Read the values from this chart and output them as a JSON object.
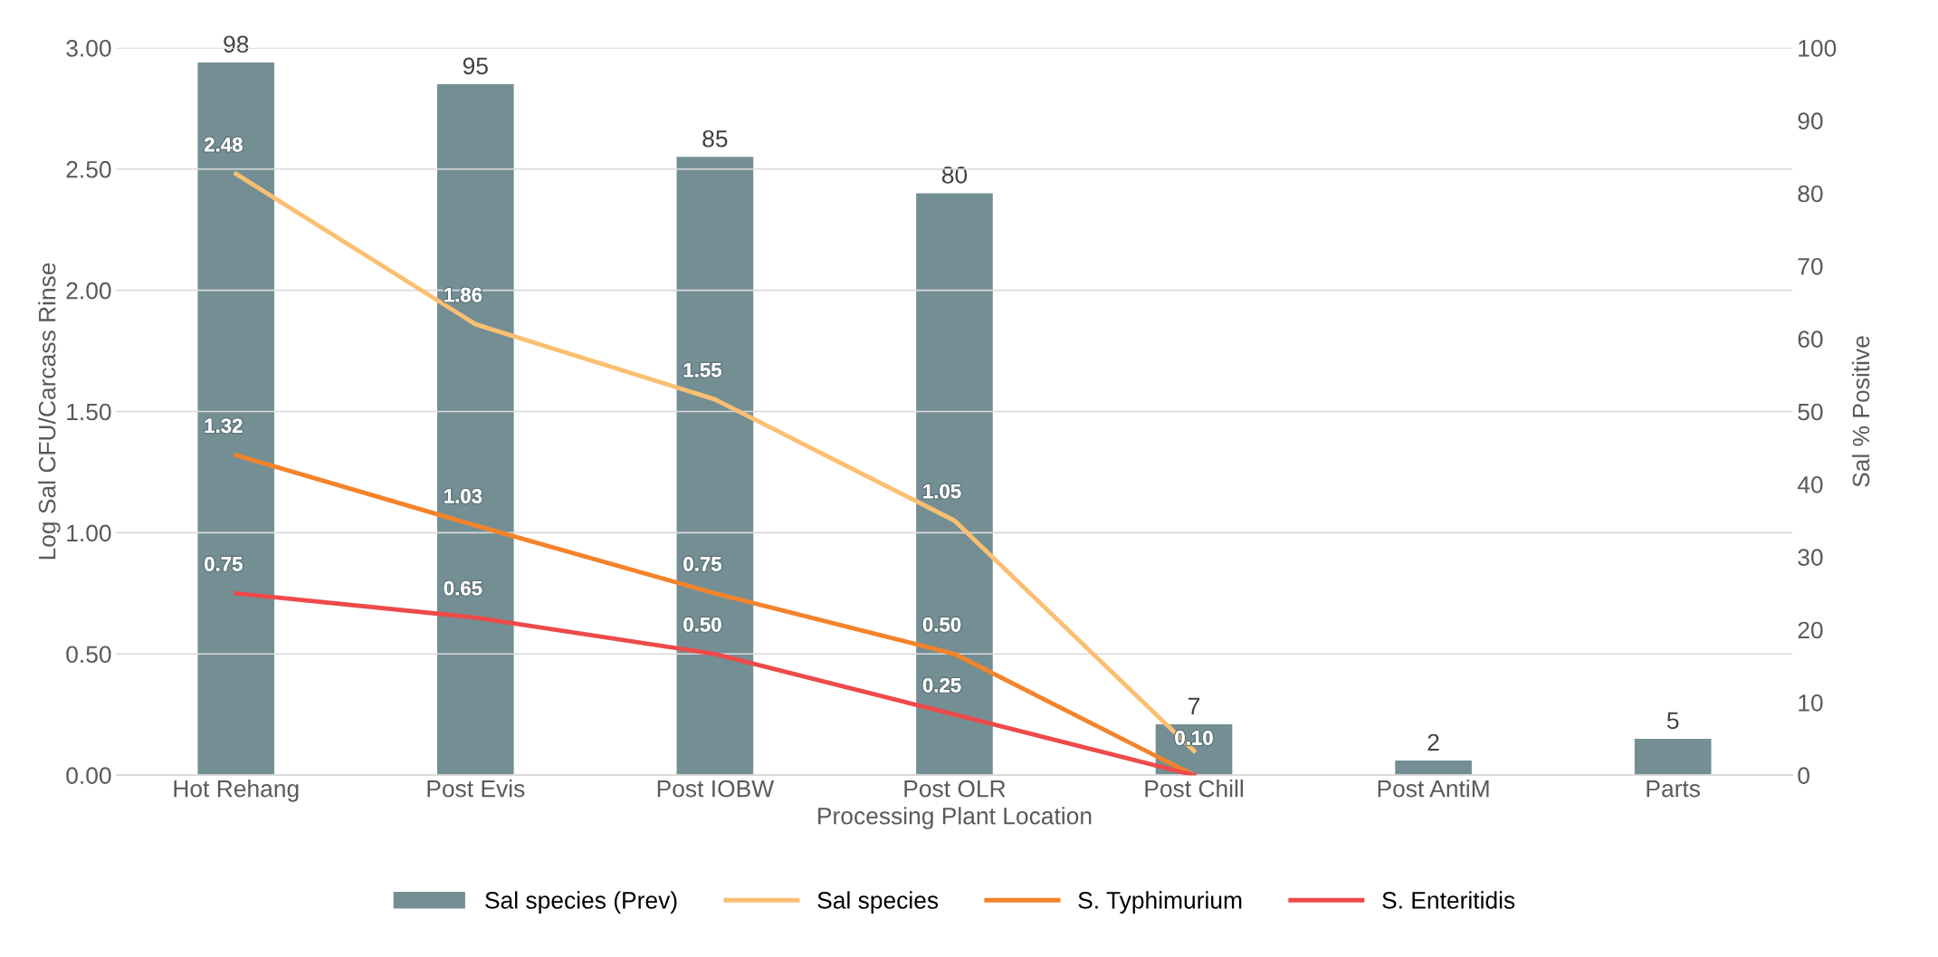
{
  "chart_data": {
    "type": "bar",
    "xlabel": "Processing Plant Location",
    "ylabel": "Log Sal CFU/Carcass Rinse",
    "y2label": "Sal % Positive",
    "categories": [
      "Hot Rehang",
      "Post Evis",
      "Post IOBW",
      "Post OLR",
      "Post Chill",
      "Post AntiM",
      "Parts"
    ],
    "series": [
      {
        "name": "Sal species (Prev)",
        "axis": "y2",
        "color": "#738f94",
        "values": [
          98,
          95,
          85,
          80,
          7,
          2,
          5
        ],
        "data_labels": true
      },
      {
        "name": "Sal species",
        "type": "line",
        "color": "#fbbf72",
        "values": [
          2.48,
          1.86,
          1.55,
          1.05,
          0.1,
          null,
          null
        ],
        "value_labels": [
          "2.48",
          "1.86",
          "1.55",
          "1.05",
          "0.10",
          null,
          null
        ]
      },
      {
        "name": "S. Typhimurium",
        "type": "line",
        "color": "#f5832a",
        "values": [
          1.32,
          1.03,
          0.75,
          0.5,
          0.0,
          null,
          null
        ],
        "value_labels": [
          "1.32",
          "1.03",
          "0.75",
          "0.50",
          null,
          null,
          null
        ]
      },
      {
        "name": "S. Enteritidis",
        "type": "line",
        "color": "#ee4a4a",
        "values": [
          0.75,
          0.65,
          0.5,
          0.25,
          0.0,
          null,
          null
        ],
        "value_labels": [
          "0.75",
          "0.65",
          "0.50",
          "0.25",
          null,
          null,
          null
        ]
      }
    ],
    "ylim": [
      0,
      3
    ],
    "yticks": [
      {
        "value": 0,
        "label": "0.00"
      },
      {
        "value": 0.5,
        "label": "0.50"
      },
      {
        "value": 1,
        "label": "1.00"
      },
      {
        "value": 1.5,
        "label": "1.50"
      },
      {
        "value": 2,
        "label": "2.00"
      },
      {
        "value": 2.5,
        "label": "2.50"
      },
      {
        "value": 3,
        "label": "3.00"
      }
    ],
    "y2lim": [
      0,
      100
    ],
    "y2ticks": [
      0,
      10,
      20,
      30,
      40,
      50,
      60,
      70,
      80,
      90,
      100
    ],
    "grid": "y",
    "legend": "bottom",
    "marker": "none",
    "line_style": "solid"
  }
}
